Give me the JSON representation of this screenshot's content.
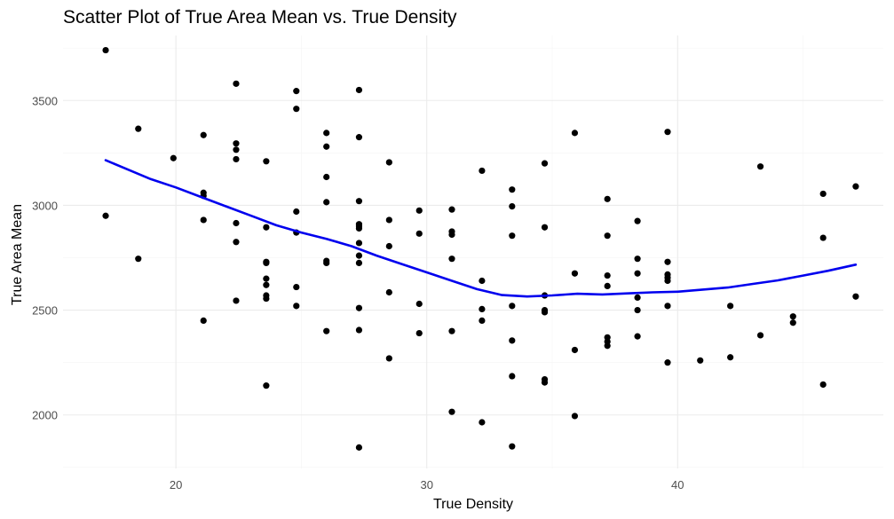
{
  "chart_data": {
    "type": "scatter",
    "title": "Scatter Plot of True Area Mean vs. True Density",
    "xlabel": "True Density",
    "ylabel": "True Area Mean",
    "xlim": [
      15.5,
      48.2
    ],
    "ylim": [
      1745,
      3810
    ],
    "x_ticks": [
      20,
      30,
      40
    ],
    "y_ticks": [
      2000,
      2500,
      3000,
      3500
    ],
    "grid": true,
    "point_color": "#000000",
    "trend_color": "#0000ee",
    "points": [
      {
        "x": 17.2,
        "y": 3740
      },
      {
        "x": 17.2,
        "y": 2950
      },
      {
        "x": 18.5,
        "y": 3365
      },
      {
        "x": 18.5,
        "y": 2745
      },
      {
        "x": 19.9,
        "y": 3225
      },
      {
        "x": 21.1,
        "y": 3335
      },
      {
        "x": 21.1,
        "y": 3060
      },
      {
        "x": 21.1,
        "y": 3045
      },
      {
        "x": 21.1,
        "y": 2930
      },
      {
        "x": 21.1,
        "y": 2450
      },
      {
        "x": 22.4,
        "y": 3580
      },
      {
        "x": 22.4,
        "y": 3295
      },
      {
        "x": 22.4,
        "y": 3265
      },
      {
        "x": 22.4,
        "y": 3220
      },
      {
        "x": 22.4,
        "y": 2915
      },
      {
        "x": 22.4,
        "y": 2825
      },
      {
        "x": 22.4,
        "y": 2545
      },
      {
        "x": 23.6,
        "y": 3210
      },
      {
        "x": 23.6,
        "y": 2895
      },
      {
        "x": 23.6,
        "y": 2730
      },
      {
        "x": 23.6,
        "y": 2725
      },
      {
        "x": 23.6,
        "y": 2650
      },
      {
        "x": 23.6,
        "y": 2620
      },
      {
        "x": 23.6,
        "y": 2570
      },
      {
        "x": 23.6,
        "y": 2555
      },
      {
        "x": 23.6,
        "y": 2140
      },
      {
        "x": 24.8,
        "y": 3545
      },
      {
        "x": 24.8,
        "y": 3460
      },
      {
        "x": 24.8,
        "y": 2970
      },
      {
        "x": 24.8,
        "y": 2870
      },
      {
        "x": 24.8,
        "y": 2610
      },
      {
        "x": 24.8,
        "y": 2520
      },
      {
        "x": 26.0,
        "y": 3345
      },
      {
        "x": 26.0,
        "y": 3280
      },
      {
        "x": 26.0,
        "y": 3135
      },
      {
        "x": 26.0,
        "y": 3015
      },
      {
        "x": 26.0,
        "y": 2735
      },
      {
        "x": 26.0,
        "y": 2725
      },
      {
        "x": 26.0,
        "y": 2400
      },
      {
        "x": 27.3,
        "y": 3550
      },
      {
        "x": 27.3,
        "y": 3325
      },
      {
        "x": 27.3,
        "y": 3020
      },
      {
        "x": 27.3,
        "y": 2910
      },
      {
        "x": 27.3,
        "y": 2900
      },
      {
        "x": 27.3,
        "y": 2890
      },
      {
        "x": 27.3,
        "y": 2820
      },
      {
        "x": 27.3,
        "y": 2760
      },
      {
        "x": 27.3,
        "y": 2725
      },
      {
        "x": 27.3,
        "y": 2510
      },
      {
        "x": 27.3,
        "y": 2405
      },
      {
        "x": 27.3,
        "y": 1845
      },
      {
        "x": 28.5,
        "y": 3205
      },
      {
        "x": 28.5,
        "y": 2930
      },
      {
        "x": 28.5,
        "y": 2805
      },
      {
        "x": 28.5,
        "y": 2585
      },
      {
        "x": 28.5,
        "y": 2270
      },
      {
        "x": 29.7,
        "y": 2975
      },
      {
        "x": 29.7,
        "y": 2865
      },
      {
        "x": 29.7,
        "y": 2530
      },
      {
        "x": 29.7,
        "y": 2390
      },
      {
        "x": 31.0,
        "y": 2980
      },
      {
        "x": 31.0,
        "y": 2875
      },
      {
        "x": 31.0,
        "y": 2860
      },
      {
        "x": 31.0,
        "y": 2745
      },
      {
        "x": 31.0,
        "y": 2400
      },
      {
        "x": 31.0,
        "y": 2015
      },
      {
        "x": 32.2,
        "y": 3165
      },
      {
        "x": 32.2,
        "y": 2640
      },
      {
        "x": 32.2,
        "y": 2505
      },
      {
        "x": 32.2,
        "y": 2450
      },
      {
        "x": 32.2,
        "y": 1965
      },
      {
        "x": 33.4,
        "y": 3075
      },
      {
        "x": 33.4,
        "y": 2995
      },
      {
        "x": 33.4,
        "y": 2855
      },
      {
        "x": 33.4,
        "y": 2520
      },
      {
        "x": 33.4,
        "y": 2355
      },
      {
        "x": 33.4,
        "y": 2185
      },
      {
        "x": 33.4,
        "y": 1850
      },
      {
        "x": 34.7,
        "y": 3200
      },
      {
        "x": 34.7,
        "y": 2895
      },
      {
        "x": 34.7,
        "y": 2570
      },
      {
        "x": 34.7,
        "y": 2500
      },
      {
        "x": 34.7,
        "y": 2490
      },
      {
        "x": 34.7,
        "y": 2170
      },
      {
        "x": 34.7,
        "y": 2155
      },
      {
        "x": 35.9,
        "y": 3345
      },
      {
        "x": 35.9,
        "y": 2675
      },
      {
        "x": 35.9,
        "y": 2310
      },
      {
        "x": 35.9,
        "y": 1995
      },
      {
        "x": 37.2,
        "y": 3030
      },
      {
        "x": 37.2,
        "y": 2855
      },
      {
        "x": 37.2,
        "y": 2665
      },
      {
        "x": 37.2,
        "y": 2615
      },
      {
        "x": 37.2,
        "y": 2370
      },
      {
        "x": 37.2,
        "y": 2350
      },
      {
        "x": 37.2,
        "y": 2330
      },
      {
        "x": 38.4,
        "y": 2925
      },
      {
        "x": 38.4,
        "y": 2745
      },
      {
        "x": 38.4,
        "y": 2675
      },
      {
        "x": 38.4,
        "y": 2560
      },
      {
        "x": 38.4,
        "y": 2500
      },
      {
        "x": 38.4,
        "y": 2375
      },
      {
        "x": 39.6,
        "y": 3350
      },
      {
        "x": 39.6,
        "y": 2730
      },
      {
        "x": 39.6,
        "y": 2670
      },
      {
        "x": 39.6,
        "y": 2655
      },
      {
        "x": 39.6,
        "y": 2640
      },
      {
        "x": 39.6,
        "y": 2520
      },
      {
        "x": 39.6,
        "y": 2250
      },
      {
        "x": 40.9,
        "y": 2260
      },
      {
        "x": 42.1,
        "y": 2520
      },
      {
        "x": 42.1,
        "y": 2275
      },
      {
        "x": 43.3,
        "y": 3185
      },
      {
        "x": 43.3,
        "y": 2380
      },
      {
        "x": 44.6,
        "y": 2470
      },
      {
        "x": 44.6,
        "y": 2440
      },
      {
        "x": 45.8,
        "y": 3055
      },
      {
        "x": 45.8,
        "y": 2845
      },
      {
        "x": 45.8,
        "y": 2145
      },
      {
        "x": 47.1,
        "y": 3090
      },
      {
        "x": 47.1,
        "y": 2565
      }
    ],
    "trend": [
      {
        "x": 17.2,
        "y": 3215
      },
      {
        "x": 18.0,
        "y": 3175
      },
      {
        "x": 19.0,
        "y": 3125
      },
      {
        "x": 20.0,
        "y": 3085
      },
      {
        "x": 21.0,
        "y": 3040
      },
      {
        "x": 22.0,
        "y": 2995
      },
      {
        "x": 23.0,
        "y": 2950
      },
      {
        "x": 24.0,
        "y": 2905
      },
      {
        "x": 25.0,
        "y": 2870
      },
      {
        "x": 26.0,
        "y": 2840
      },
      {
        "x": 27.0,
        "y": 2805
      },
      {
        "x": 28.0,
        "y": 2760
      },
      {
        "x": 29.0,
        "y": 2720
      },
      {
        "x": 30.0,
        "y": 2680
      },
      {
        "x": 31.0,
        "y": 2640
      },
      {
        "x": 32.0,
        "y": 2600
      },
      {
        "x": 33.0,
        "y": 2572
      },
      {
        "x": 34.0,
        "y": 2565
      },
      {
        "x": 35.0,
        "y": 2570
      },
      {
        "x": 36.0,
        "y": 2578
      },
      {
        "x": 37.0,
        "y": 2575
      },
      {
        "x": 38.0,
        "y": 2580
      },
      {
        "x": 39.0,
        "y": 2585
      },
      {
        "x": 40.0,
        "y": 2588
      },
      {
        "x": 41.0,
        "y": 2598
      },
      {
        "x": 42.0,
        "y": 2608
      },
      {
        "x": 43.0,
        "y": 2625
      },
      {
        "x": 44.0,
        "y": 2642
      },
      {
        "x": 45.0,
        "y": 2665
      },
      {
        "x": 46.0,
        "y": 2688
      },
      {
        "x": 47.1,
        "y": 2717
      }
    ]
  }
}
